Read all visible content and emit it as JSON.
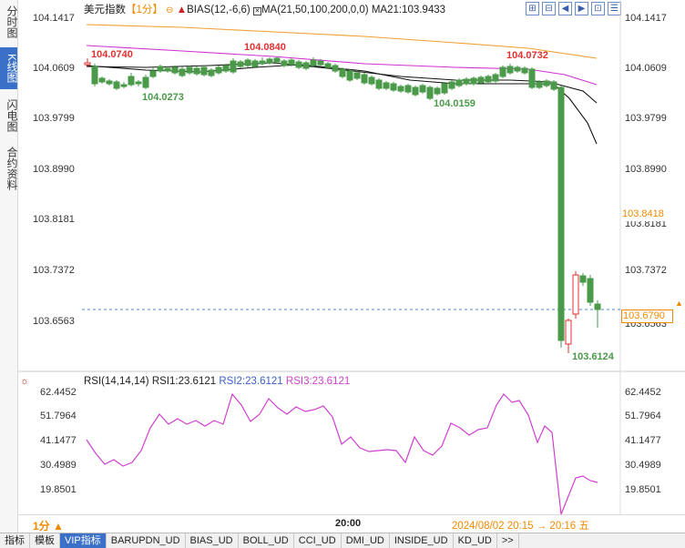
{
  "left_tabs": [
    {
      "label": "分时图",
      "active": false
    },
    {
      "label": "K线图",
      "active": true
    },
    {
      "label": "闪电图",
      "active": false
    },
    {
      "label": "合约资料",
      "active": false
    }
  ],
  "header": {
    "symbol": "美元指数",
    "period": "【1分】",
    "indicator1": "BIAS(12,-6,6)",
    "indicator2": "MA(21,50,100,200,0,0)",
    "ma21": "MA21:103.9433"
  },
  "toolbar_icons": [
    "add-icon",
    "subtract-icon",
    "left-arrow-icon",
    "right-arrow-icon",
    "settings-icon",
    "list-icon"
  ],
  "price_axis": [
    "104.1417",
    "104.0609",
    "103.9799",
    "103.8990",
    "103.8181",
    "103.7372",
    "103.6563"
  ],
  "price_labels": {
    "high_left": "104.0740",
    "high_mid": "104.0840",
    "high_right": "104.0732",
    "low_left": "104.0273",
    "low_mid": "104.0159",
    "low_last": "103.6124",
    "orange_tag": "103.8418",
    "current_tag": "103.6790"
  },
  "rsi_header": {
    "name": "RSI(14,14,14)",
    "rsi1": "RSI1:23.6121",
    "rsi2": "RSI2:23.6121",
    "rsi3": "RSI3:23.6121"
  },
  "rsi_axis": [
    "62.4452",
    "51.7964",
    "41.1477",
    "30.4989",
    "19.8501"
  ],
  "time_bar": {
    "period_select": "1分 ▲",
    "time_tick": "20:00",
    "cursor_time": "2024/08/02 20:15 → 20:16 五"
  },
  "bottom_tabs": [
    {
      "label": "指标",
      "active": false
    },
    {
      "label": "模板",
      "active": false
    },
    {
      "label": "VIP指标",
      "active": true
    },
    {
      "label": "BARUPDN_UD",
      "active": false
    },
    {
      "label": "BIAS_UD",
      "active": false
    },
    {
      "label": "BOLL_UD",
      "active": false
    },
    {
      "label": "CCI_UD",
      "active": false
    },
    {
      "label": "DMI_UD",
      "active": false
    },
    {
      "label": "INSIDE_UD",
      "active": false
    },
    {
      "label": "KD_UD",
      "active": false
    },
    {
      "label": ">>",
      "active": false
    }
  ],
  "colors": {
    "up": "#e03030",
    "down": "#4a9a4a",
    "ma_orange": "#f0a030",
    "ma_magenta": "#d030d0",
    "ma_black": "#111111",
    "rsi": "#d040d0",
    "current_line": "#4a8ad0",
    "accent": "#3a70c8"
  }
}
